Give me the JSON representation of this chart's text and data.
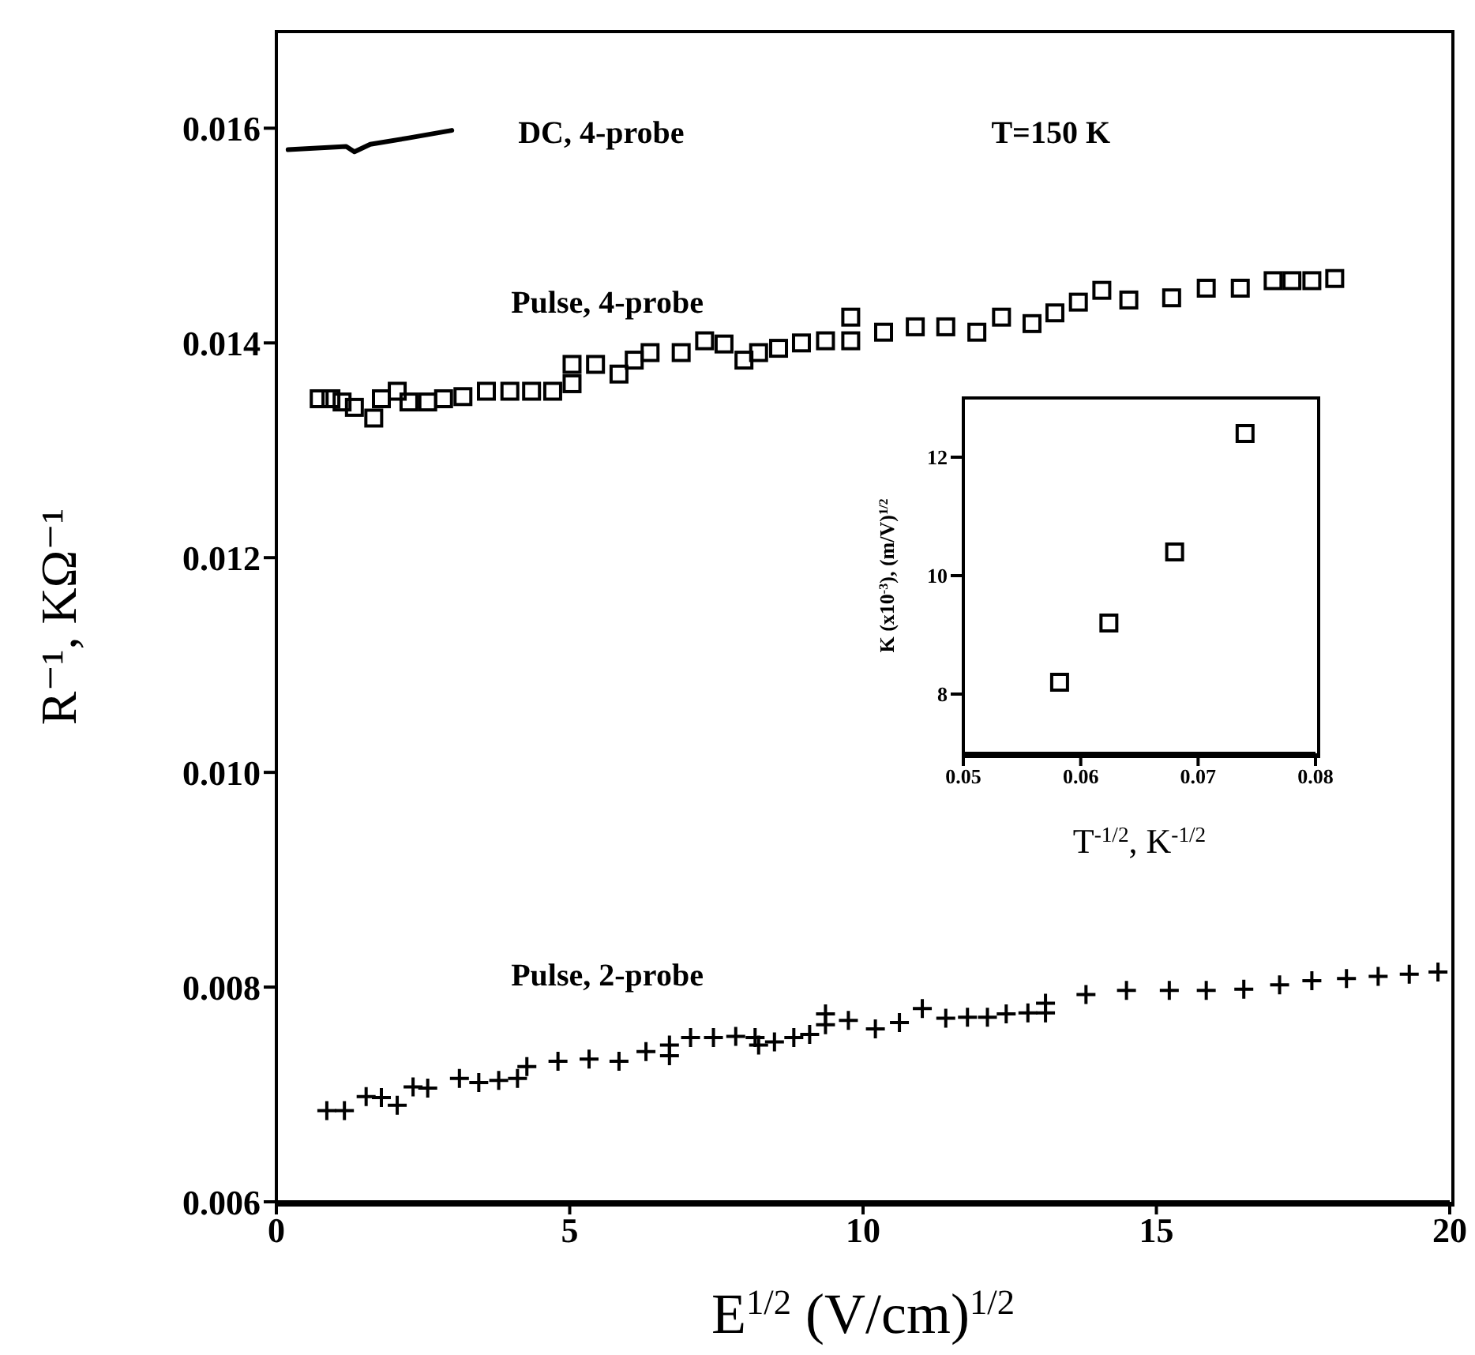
{
  "chart_data": [
    {
      "type": "scatter",
      "xlabel": "E$^{1/2}$ (V/cm)$^{1/2}$",
      "ylabel": "R⁻¹, KΩ⁻¹",
      "xlim": [
        0,
        20
      ],
      "xticks": [
        0,
        5,
        10,
        15,
        20
      ],
      "ylim": [
        0.006,
        0.0169
      ],
      "yticks": [
        0.006,
        0.008,
        {
          "value": 0.01,
          "label": "0.010"
        },
        0.012,
        0.014,
        0.016
      ],
      "annotations": [
        "T=150 K"
      ],
      "series": [
        {
          "name": "DC, 4-probe",
          "type": "line",
          "color": "#000000",
          "marker": "none",
          "x": [
            0.2,
            1.19,
            1.33,
            1.6,
            2.26,
            2.99
          ],
          "values": [
            0.0158,
            0.01583,
            0.01578,
            0.01585,
            0.01591,
            0.01598
          ]
        },
        {
          "name": "Pulse, 4-probe",
          "color": "#000000",
          "marker": "square",
          "x": [
            0.73,
            0.93,
            1.12,
            1.33,
            1.66,
            1.79,
            2.06,
            2.26,
            2.58,
            2.85,
            3.18,
            3.58,
            3.98,
            4.35,
            4.71,
            5.04,
            5.04,
            5.44,
            5.84,
            6.1,
            6.37,
            6.9,
            7.3,
            7.63,
            7.97,
            8.22,
            8.56,
            8.95,
            9.36,
            9.79,
            9.79,
            10.35,
            10.89,
            11.41,
            11.94,
            12.36,
            12.88,
            13.27,
            13.67,
            14.07,
            14.53,
            15.26,
            15.85,
            16.43,
            16.99,
            17.31,
            17.65,
            18.04
          ],
          "values": [
            0.01348,
            0.01348,
            0.01345,
            0.0134,
            0.0133,
            0.01348,
            0.01355,
            0.01345,
            0.01345,
            0.01348,
            0.0135,
            0.01355,
            0.01355,
            0.01355,
            0.01355,
            0.01362,
            0.0138,
            0.0138,
            0.01371,
            0.01384,
            0.01391,
            0.01391,
            0.01402,
            0.01399,
            0.01384,
            0.01391,
            0.01395,
            0.014,
            0.01402,
            0.01402,
            0.01424,
            0.0141,
            0.01415,
            0.01415,
            0.0141,
            0.01424,
            0.01418,
            0.01428,
            0.01438,
            0.01449,
            0.0144,
            0.01442,
            0.01451,
            0.01451,
            0.01458,
            0.01458,
            0.01458,
            0.0146
          ]
        },
        {
          "name": "Pulse, 2-probe",
          "color": "#000000",
          "marker": "cross",
          "x": [
            0.86,
            1.16,
            1.53,
            1.79,
            2.06,
            2.33,
            2.58,
            3.12,
            3.45,
            3.79,
            4.11,
            4.27,
            4.8,
            5.33,
            5.84,
            6.3,
            6.7,
            6.7,
            7.06,
            7.45,
            7.83,
            8.16,
            8.22,
            8.49,
            8.82,
            9.09,
            9.36,
            9.36,
            9.75,
            10.21,
            10.62,
            11.01,
            11.41,
            11.78,
            12.12,
            12.44,
            12.81,
            13.11,
            13.11,
            13.8,
            14.49,
            15.22,
            15.85,
            16.49,
            17.1,
            17.65,
            18.24,
            18.78,
            19.31,
            19.8
          ],
          "values": [
            0.00685,
            0.00685,
            0.00698,
            0.00697,
            0.0069,
            0.00707,
            0.00706,
            0.00715,
            0.00711,
            0.00713,
            0.00715,
            0.00726,
            0.00731,
            0.00733,
            0.00731,
            0.0074,
            0.00746,
            0.00736,
            0.00753,
            0.00753,
            0.00754,
            0.00753,
            0.00746,
            0.00749,
            0.00753,
            0.00756,
            0.00775,
            0.00765,
            0.00769,
            0.00761,
            0.00767,
            0.0078,
            0.00771,
            0.00772,
            0.00772,
            0.00775,
            0.00776,
            0.00785,
            0.00776,
            0.00793,
            0.00797,
            0.00797,
            0.00797,
            0.00798,
            0.00802,
            0.00806,
            0.00808,
            0.0081,
            0.00812,
            0.00814
          ]
        }
      ]
    },
    {
      "type": "scatter",
      "xlabel": "T$^{-1/2}$, K$^{-1/2}$",
      "ylabel": "K (x10$^{-3}$), (m/V)$^{1/2}$",
      "xlim": [
        0.05,
        0.08
      ],
      "xticks": [
        0.05,
        0.06,
        0.07,
        0.08
      ],
      "ylim": [
        7,
        13
      ],
      "yticks": [
        8,
        10,
        12
      ],
      "marker": "square",
      "series": [
        {
          "color": "#000000",
          "x": [
            0.0582,
            0.0624,
            0.068,
            0.074
          ],
          "values": [
            8.2,
            9.2,
            10.4,
            12.4
          ]
        }
      ]
    }
  ]
}
